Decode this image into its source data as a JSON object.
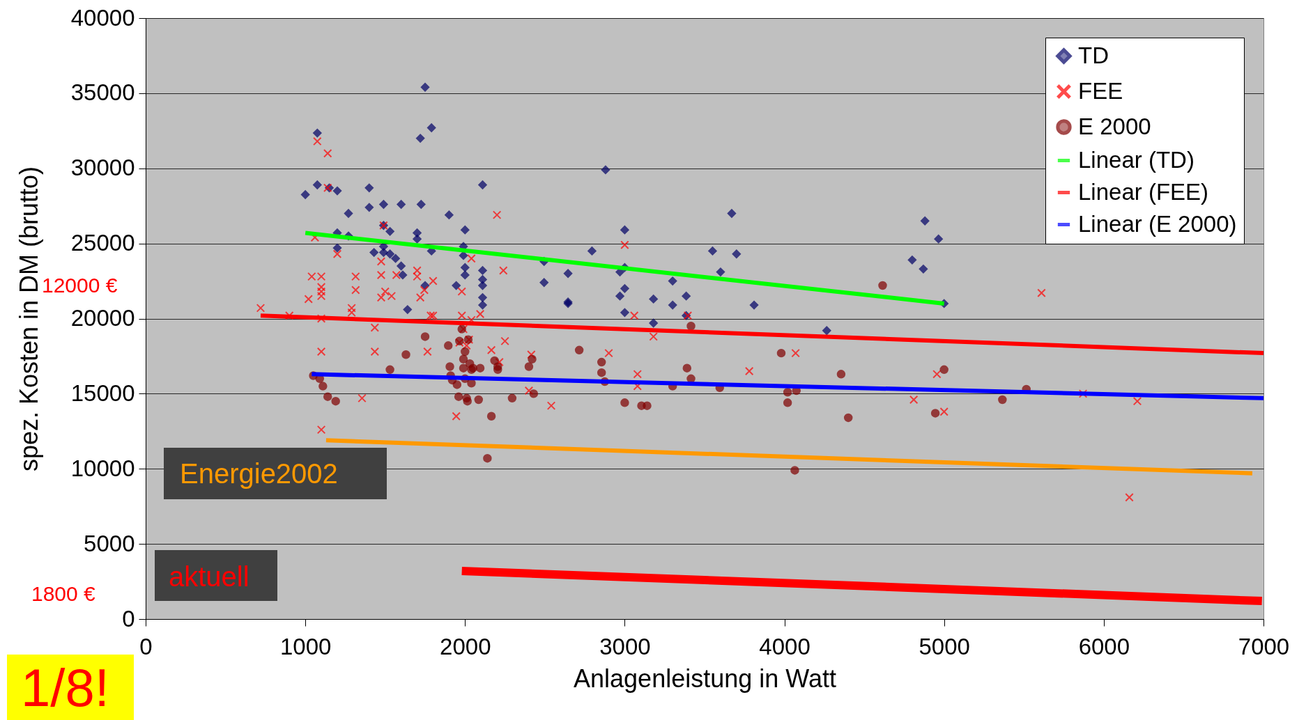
{
  "chart_data": {
    "type": "scatter",
    "xlabel": "Anlagenleistung in Watt",
    "ylabel": "spez. Kosten in DM (brutto)",
    "xlim": [
      0,
      7000
    ],
    "xticks": [
      0,
      1000,
      2000,
      3000,
      4000,
      5000,
      6000,
      7000
    ],
    "ylim": [
      0,
      40000
    ],
    "yticks": [
      0,
      5000,
      10000,
      15000,
      20000,
      25000,
      30000,
      35000,
      40000
    ],
    "grid": "y",
    "legend": "top right",
    "annotations": [
      "12000 €",
      "1800 €",
      "Energie2002",
      "aktuell",
      "1/8!"
    ],
    "series": [
      {
        "name": "TD",
        "marker": "diamond",
        "color": "#000066",
        "x": [
          1000,
          1075,
          1075,
          1150,
          1200,
          1200,
          1200,
          1270,
          1270,
          1400,
          1400,
          1430,
          1490,
          1490,
          1490,
          1490,
          1530,
          1530,
          1565,
          1600,
          1600,
          1610,
          1640,
          1700,
          1700,
          1720,
          1725,
          1750,
          1750,
          1790,
          1790,
          1900,
          1945,
          1990,
          1990,
          2000,
          2000,
          2000,
          2110,
          2110,
          2110,
          2110,
          2110,
          2110,
          2495,
          2495,
          2645,
          2645,
          2645,
          2795,
          2880,
          2970,
          2970,
          3000,
          3000,
          3000,
          3000,
          3180,
          3180,
          3300,
          3300,
          3385,
          3385,
          3550,
          3600,
          3670,
          3700,
          3810,
          4265,
          4880,
          4800,
          4870,
          4965,
          5000
        ],
        "values": [
          28250,
          32350,
          28900,
          28700,
          28500,
          25700,
          24700,
          27000,
          25500,
          28700,
          27400,
          24400,
          27600,
          26200,
          24800,
          24400,
          25800,
          24300,
          24000,
          27600,
          23500,
          22900,
          20600,
          25700,
          25300,
          32000,
          27600,
          35400,
          22200,
          32700,
          24500,
          26900,
          22200,
          24200,
          24800,
          25900,
          22900,
          23400,
          28900,
          23200,
          22600,
          22200,
          21400,
          20900,
          23800,
          22400,
          23000,
          21100,
          21000,
          24500,
          29900,
          23100,
          21500,
          25900,
          23400,
          22000,
          20400,
          21300,
          19700,
          22500,
          20900,
          21500,
          20200,
          24500,
          23100,
          27000,
          24300,
          20900,
          19200,
          26500,
          23900,
          23300,
          25300,
          21000
        ]
      },
      {
        "name": "FEE",
        "marker": "cross",
        "color": "#ff0000",
        "x": [
          720,
          900,
          1020,
          1040,
          1060,
          1075,
          1100,
          1100,
          1100,
          1100,
          1100,
          1100,
          1100,
          1140,
          1140,
          1200,
          1290,
          1290,
          1315,
          1315,
          1355,
          1435,
          1435,
          1475,
          1475,
          1475,
          1490,
          1500,
          1540,
          1570,
          1700,
          1700,
          1720,
          1745,
          1765,
          1785,
          1800,
          1800,
          1945,
          1965,
          1980,
          1980,
          1990,
          2010,
          2025,
          2040,
          2040,
          2095,
          2165,
          2200,
          2215,
          2240,
          2250,
          2400,
          2415,
          2540,
          2900,
          3000,
          3060,
          3080,
          3080,
          3180,
          3395,
          3780,
          4070,
          4810,
          4955,
          5000,
          5610,
          5870,
          6160,
          6210
        ],
        "values": [
          20700,
          20200,
          21300,
          22800,
          25400,
          31800,
          22800,
          22100,
          21800,
          21500,
          20000,
          17800,
          12600,
          31000,
          28700,
          24300,
          20700,
          20400,
          22800,
          21900,
          14700,
          19400,
          17800,
          23800,
          22900,
          21400,
          26200,
          21800,
          21500,
          22900,
          23200,
          22800,
          21400,
          21900,
          17800,
          20200,
          22500,
          20200,
          13500,
          18400,
          20200,
          21800,
          19300,
          18200,
          18600,
          24000,
          19900,
          20300,
          17900,
          26900,
          17100,
          23200,
          18500,
          15200,
          17600,
          14200,
          17700,
          24900,
          20200,
          16300,
          15500,
          18800,
          20200,
          16500,
          17700,
          14600,
          16300,
          13800,
          21700,
          15000,
          8100,
          14500
        ]
      },
      {
        "name": "E 2000",
        "marker": "circle",
        "color": "#800000",
        "x": [
          1050,
          1090,
          1110,
          1140,
          1190,
          1530,
          1630,
          1750,
          1895,
          1905,
          1910,
          1920,
          1950,
          1960,
          1965,
          1980,
          1990,
          1990,
          2000,
          2000,
          2010,
          2015,
          2020,
          2030,
          2040,
          2040,
          2050,
          2085,
          2095,
          2140,
          2165,
          2185,
          2205,
          2205,
          2295,
          2400,
          2420,
          2430,
          2715,
          2855,
          2855,
          2875,
          3000,
          3105,
          3140,
          3300,
          3390,
          3415,
          3415,
          3595,
          3980,
          4020,
          4020,
          4065,
          4075,
          4355,
          4400,
          4615,
          4945,
          5000,
          5365,
          5515
        ],
        "values": [
          16200,
          16000,
          15500,
          14800,
          14500,
          16600,
          17600,
          18800,
          18200,
          16800,
          16200,
          15900,
          15600,
          14800,
          18500,
          19300,
          17300,
          16700,
          17800,
          16000,
          14700,
          14500,
          18600,
          17000,
          16600,
          15700,
          16700,
          14600,
          16700,
          10700,
          13500,
          17200,
          16800,
          16600,
          14700,
          16800,
          17300,
          15000,
          17900,
          17100,
          16400,
          15800,
          14400,
          14200,
          14200,
          15500,
          16700,
          19500,
          16000,
          15400,
          17700,
          15100,
          14400,
          9900,
          15200,
          16300,
          13400,
          22200,
          13700,
          16600,
          14600,
          15300
        ]
      },
      {
        "name": "Linear (TD)",
        "type": "line",
        "marker": "none",
        "color": "#00ff00",
        "x": [
          1000,
          5000
        ],
        "values": [
          25700,
          21000
        ]
      },
      {
        "name": "Linear (FEE)",
        "type": "line",
        "marker": "none",
        "color": "#ff0000",
        "x": [
          720,
          7000
        ],
        "values": [
          20200,
          17700
        ]
      },
      {
        "name": "Linear (E 2000)",
        "type": "line",
        "marker": "none",
        "color": "#0000ff",
        "x": [
          1040,
          7000
        ],
        "values": [
          16300,
          14700
        ]
      },
      {
        "type": "line",
        "marker": "none",
        "color": "#ff9900",
        "x": [
          1130,
          6930
        ],
        "values": [
          11900,
          9700
        ]
      },
      {
        "type": "line",
        "marker": "none",
        "color": "#ff0000",
        "x": [
          1980,
          6990
        ],
        "values": [
          3200,
          1200
        ]
      }
    ]
  }
}
